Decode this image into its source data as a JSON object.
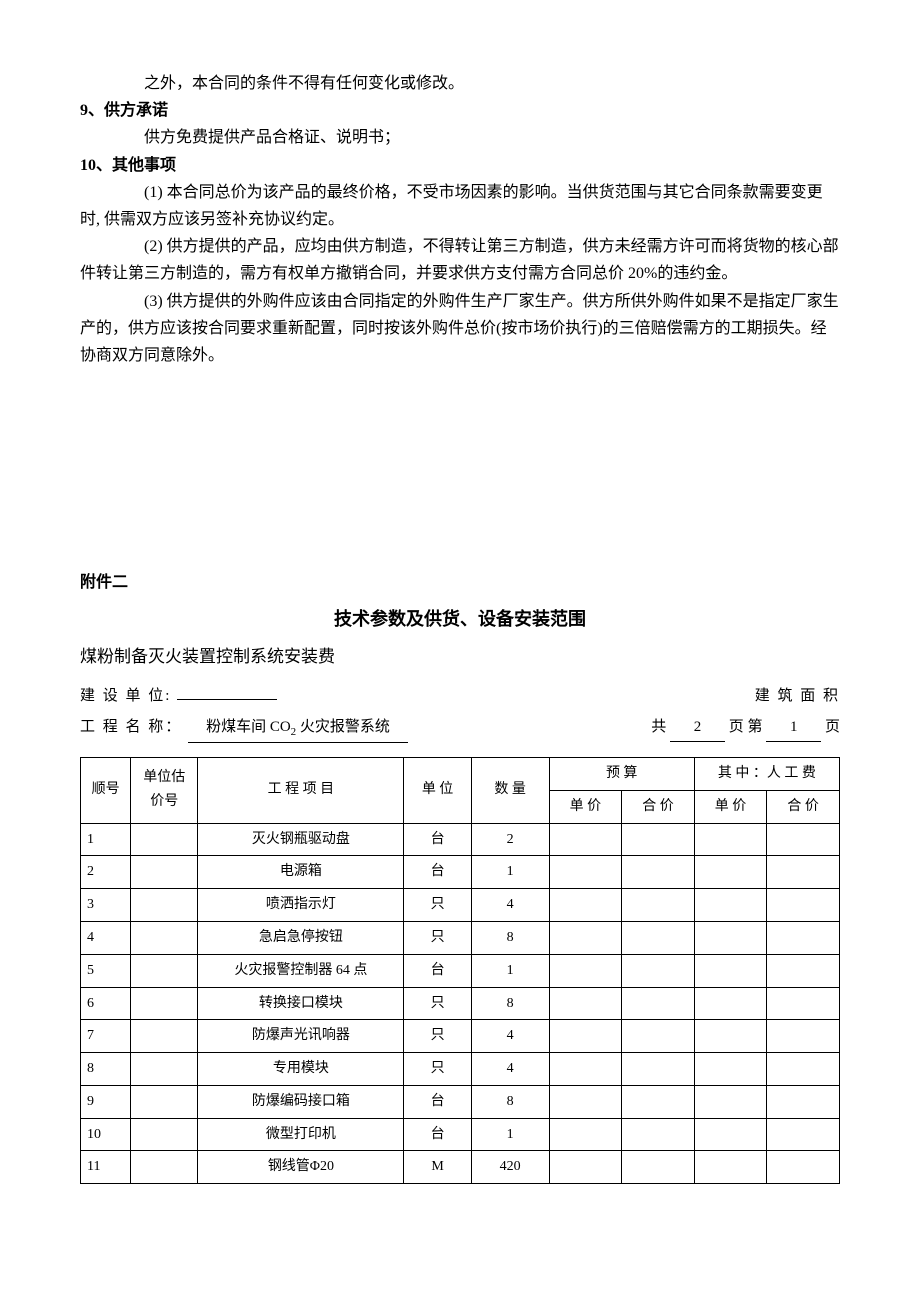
{
  "para_top": "之外，本合同的条件不得有任何变化或修改。",
  "sec9_num": "9、供方承诺",
  "sec9_p1": "供方免费提供产品合格证、说明书；",
  "sec10_num": "10、其他事项",
  "sec10_p1": "(1) 本合同总价为该产品的最终价格，不受市场因素的影响。当供货范围与其它合同条款需要变更时, 供需双方应该另签补充协议约定。",
  "sec10_p2": "(2) 供方提供的产品，应均由供方制造，不得转让第三方制造，供方未经需方许可而将货物的核心部件转让第三方制造的，需方有权单方撤销合同，并要求供方支付需方合同总价 20%的违约金。",
  "sec10_p3": "(3) 供方提供的外购件应该由合同指定的外购件生产厂家生产。供方所供外购件如果不是指定厂家生产的，供方应该按合同要求重新配置，同时按该外购件总价(按市场价执行)的三倍赔偿需方的工期损失。经协商双方同意除外。",
  "attachment_label": "附件二",
  "attachment_title": "技术参数及供货、设备安装范围",
  "subtitle": "煤粉制备灭火装置控制系统安装费",
  "meta": {
    "build_unit_label": "建 设 单 位:",
    "build_unit_value": "",
    "area_label": "建 筑 面 积",
    "project_label": "工 程 名 称：",
    "project_value_prefix": "粉煤车间 CO",
    "project_value_sub": "2",
    "project_value_suffix": " 火灾报警系统",
    "page_prefix": "共",
    "page_total": "2",
    "page_mid": "页 第",
    "page_current": "1",
    "page_suffix": "页"
  },
  "table": {
    "headers": {
      "seq": "顺号",
      "est": "单位估价号",
      "proj": "工 程 项 目",
      "unit": "单 位",
      "qty": "数 量",
      "budget": "预    算",
      "labor": "其 中 ：人 工 费",
      "unit_price": "单 价",
      "total_price": "合 价"
    },
    "rows": [
      {
        "seq": "1",
        "est": "",
        "proj": "灭火钢瓶驱动盘",
        "unit": "台",
        "qty": "2"
      },
      {
        "seq": "2",
        "est": "",
        "proj": "电源箱",
        "unit": "台",
        "qty": "1"
      },
      {
        "seq": "3",
        "est": "",
        "proj": "喷洒指示灯",
        "unit": "只",
        "qty": "4"
      },
      {
        "seq": "4",
        "est": "",
        "proj": "急启急停按钮",
        "unit": "只",
        "qty": "8"
      },
      {
        "seq": "5",
        "est": "",
        "proj": "火灾报警控制器 64 点",
        "unit": "台",
        "qty": "1"
      },
      {
        "seq": "6",
        "est": "",
        "proj": "转换接口模块",
        "unit": "只",
        "qty": "8"
      },
      {
        "seq": "7",
        "est": "",
        "proj": "防爆声光讯响器",
        "unit": "只",
        "qty": "4"
      },
      {
        "seq": "8",
        "est": "",
        "proj": "专用模块",
        "unit": "只",
        "qty": "4"
      },
      {
        "seq": "9",
        "est": "",
        "proj": "防爆编码接口箱",
        "unit": "台",
        "qty": "8"
      },
      {
        "seq": "10",
        "est": "",
        "proj": "微型打印机",
        "unit": "台",
        "qty": "1"
      },
      {
        "seq": "11",
        "est": "",
        "proj": "钢线管Φ20",
        "unit": "M",
        "qty": "420"
      }
    ]
  }
}
